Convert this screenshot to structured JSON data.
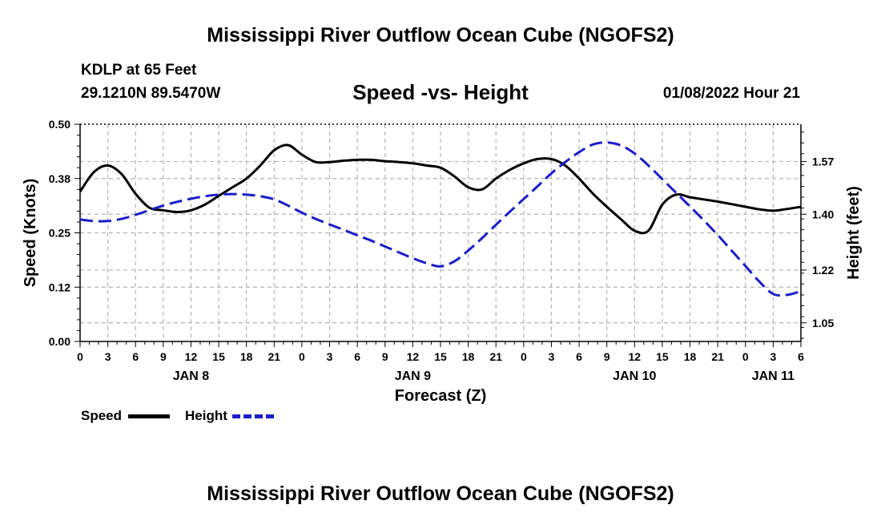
{
  "header": {
    "title": "Mississippi River Outflow Ocean Cube (NGOFS2)",
    "station": "KDLP at 65 Feet",
    "coords": "29.1210N  89.5470W",
    "datetime": "01/08/2022 Hour 21",
    "footer_title": "Mississippi River Outflow Ocean Cube (NGOFS2)"
  },
  "chart_data": {
    "type": "line",
    "title": "Speed -vs- Height",
    "xlabel": "Forecast (Z)",
    "ylabel_left": "Speed (Knots)",
    "ylabel_right": "Height (feet)",
    "xlim": [
      0,
      78
    ],
    "ylim_left": [
      0,
      0.5
    ],
    "ylim_right": [
      0.99,
      1.69
    ],
    "left_ticks": [
      "0.00",
      "0.12",
      "0.25",
      "0.38",
      "0.50"
    ],
    "left_tick_values": [
      0,
      0.125,
      0.25,
      0.375,
      0.5
    ],
    "right_ticks": [
      "1.05",
      "1.22",
      "1.40",
      "1.57"
    ],
    "right_tick_values": [
      1.05,
      1.22,
      1.4,
      1.57
    ],
    "x_tick_labels": [
      "0",
      "3",
      "6",
      "9",
      "12",
      "15",
      "18",
      "21",
      "0",
      "3",
      "6",
      "9",
      "12",
      "15",
      "18",
      "21",
      "0",
      "3",
      "6",
      "9",
      "12",
      "15",
      "18",
      "21",
      "0",
      "3",
      "6"
    ],
    "day_labels": [
      {
        "label": "JAN 8",
        "x": 12
      },
      {
        "label": "JAN 9",
        "x": 36
      },
      {
        "label": "JAN 10",
        "x": 60
      },
      {
        "label": "JAN 11",
        "x": 75
      }
    ],
    "grid": true,
    "series": [
      {
        "name": "Speed",
        "axis": "left",
        "color": "#000000",
        "style": "solid",
        "x": [
          0,
          1.5,
          3,
          4.5,
          6,
          7.5,
          9,
          10.5,
          12,
          13.5,
          15,
          16.5,
          18,
          19.5,
          21,
          22.5,
          24,
          25.5,
          27,
          28.5,
          30,
          31.5,
          33,
          34.5,
          36,
          37.5,
          39,
          40.5,
          42,
          43.5,
          45,
          46.5,
          48,
          49.5,
          51,
          52.5,
          54,
          55.5,
          57,
          58.5,
          60,
          61.5,
          63,
          64.5,
          66,
          67.5,
          69,
          70.5,
          72,
          73.5,
          75,
          76.5,
          78
        ],
        "values": [
          0.345,
          0.39,
          0.405,
          0.385,
          0.34,
          0.308,
          0.302,
          0.298,
          0.302,
          0.315,
          0.335,
          0.355,
          0.375,
          0.405,
          0.44,
          0.452,
          0.43,
          0.413,
          0.413,
          0.416,
          0.418,
          0.418,
          0.415,
          0.413,
          0.41,
          0.405,
          0.4,
          0.38,
          0.355,
          0.35,
          0.375,
          0.395,
          0.41,
          0.42,
          0.42,
          0.405,
          0.375,
          0.34,
          0.31,
          0.282,
          0.255,
          0.255,
          0.315,
          0.338,
          0.332,
          0.327,
          0.322,
          0.316,
          0.31,
          0.304,
          0.301,
          0.305,
          0.31
        ]
      },
      {
        "name": "Height",
        "axis": "right",
        "color": "#1c1cc8",
        "style": "dashed",
        "x": [
          0,
          1.5,
          3,
          4.5,
          6,
          7.5,
          9,
          10.5,
          12,
          13.5,
          15,
          16.5,
          18,
          19.5,
          21,
          22.5,
          24,
          25.5,
          27,
          28.5,
          30,
          31.5,
          33,
          34.5,
          36,
          37.5,
          39,
          40.5,
          42,
          43.5,
          45,
          46.5,
          48,
          49.5,
          51,
          52.5,
          54,
          55.5,
          57,
          58.5,
          60,
          61.5,
          63,
          64.5,
          66,
          67.5,
          69,
          70.5,
          72,
          73.5,
          75,
          76.5,
          78
        ],
        "values": [
          1.383,
          1.378,
          1.378,
          1.385,
          1.398,
          1.413,
          1.428,
          1.44,
          1.45,
          1.458,
          1.463,
          1.465,
          1.463,
          1.458,
          1.448,
          1.428,
          1.405,
          1.385,
          1.367,
          1.35,
          1.332,
          1.315,
          1.296,
          1.277,
          1.258,
          1.242,
          1.232,
          1.248,
          1.283,
          1.323,
          1.366,
          1.408,
          1.449,
          1.49,
          1.532,
          1.568,
          1.6,
          1.625,
          1.631,
          1.622,
          1.596,
          1.557,
          1.513,
          1.469,
          1.425,
          1.38,
          1.333,
          1.283,
          1.233,
          1.183,
          1.143,
          1.14,
          1.152
        ]
      }
    ]
  },
  "legend": {
    "items": [
      {
        "label": "Speed",
        "color": "#000000",
        "style": "solid"
      },
      {
        "label": "Height",
        "color": "#1c1cc8",
        "style": "dashed"
      }
    ]
  }
}
